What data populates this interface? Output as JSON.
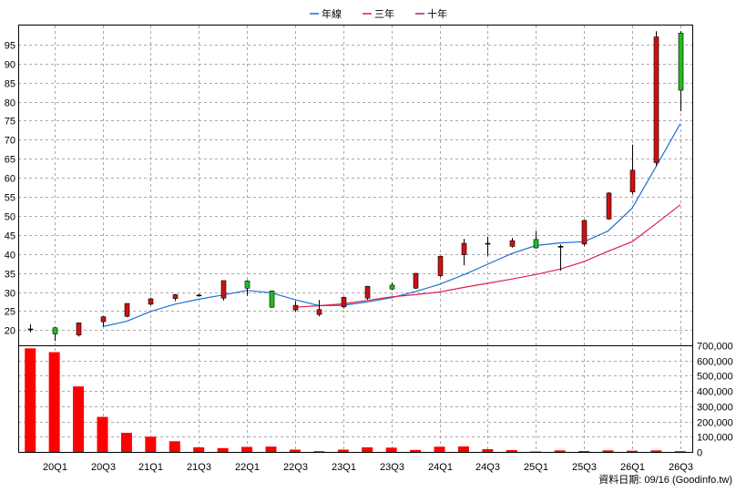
{
  "chart_data": {
    "type": "candlestick",
    "legend": {
      "placement": "top-center",
      "items": [
        {
          "name": "年線",
          "color": "#1f6fd6"
        },
        {
          "name": "三年",
          "color": "#e0204a"
        },
        {
          "name": "十年",
          "color": "#a0207a"
        }
      ]
    },
    "price_axis": {
      "ylim": [
        16,
        100
      ],
      "ticks": [
        20,
        25,
        30,
        35,
        40,
        45,
        50,
        55,
        60,
        65,
        70,
        75,
        80,
        85,
        90,
        95
      ]
    },
    "volume_axis": {
      "ylim": [
        0,
        700000
      ],
      "ticks": [
        "0",
        "100,000",
        "200,000",
        "300,000",
        "400,000",
        "500,000",
        "600,000",
        "700,000"
      ],
      "tick_values": [
        0,
        100000,
        200000,
        300000,
        400000,
        500000,
        600000,
        700000
      ]
    },
    "x_tick_labels": [
      {
        "i": 1,
        "label": "20Q1"
      },
      {
        "i": 3,
        "label": "20Q3"
      },
      {
        "i": 5,
        "label": "21Q1"
      },
      {
        "i": 7,
        "label": "21Q3"
      },
      {
        "i": 9,
        "label": "22Q1"
      },
      {
        "i": 11,
        "label": "22Q3"
      },
      {
        "i": 13,
        "label": "23Q1"
      },
      {
        "i": 15,
        "label": "23Q3"
      },
      {
        "i": 17,
        "label": "24Q1"
      },
      {
        "i": 19,
        "label": "24Q3"
      },
      {
        "i": 21,
        "label": "25Q1"
      },
      {
        "i": 23,
        "label": "25Q3"
      },
      {
        "i": 25,
        "label": "26Q1"
      },
      {
        "i": 27,
        "label": "26Q3"
      }
    ],
    "candles": [
      {
        "open": 20.3,
        "close": 20.3,
        "high": 21.5,
        "low": 19.4,
        "color": "black"
      },
      {
        "open": 19.0,
        "close": 20.6,
        "high": 20.8,
        "low": 17.1,
        "color": "green"
      },
      {
        "open": 18.7,
        "close": 21.9,
        "high": 21.9,
        "low": 18.3,
        "color": "red"
      },
      {
        "open": 22.2,
        "close": 23.5,
        "high": 23.7,
        "low": 21.0,
        "color": "red"
      },
      {
        "open": 23.6,
        "close": 27.0,
        "high": 27.0,
        "low": 23.4,
        "color": "red"
      },
      {
        "open": 26.8,
        "close": 28.2,
        "high": 28.5,
        "low": 26.5,
        "color": "red"
      },
      {
        "open": 28.3,
        "close": 29.3,
        "high": 29.5,
        "low": 27.6,
        "color": "red"
      },
      {
        "open": 29.2,
        "close": 29.2,
        "high": 29.5,
        "low": 28.8,
        "color": "black"
      },
      {
        "open": 28.4,
        "close": 33.0,
        "high": 33.0,
        "low": 27.8,
        "color": "red"
      },
      {
        "open": 32.9,
        "close": 31.0,
        "high": 33.1,
        "low": 29.0,
        "color": "green"
      },
      {
        "open": 30.3,
        "close": 26.0,
        "high": 30.4,
        "low": 25.8,
        "color": "green"
      },
      {
        "open": 25.3,
        "close": 26.5,
        "high": 27.6,
        "low": 24.8,
        "color": "red"
      },
      {
        "open": 24.1,
        "close": 25.4,
        "high": 27.9,
        "low": 23.6,
        "color": "red"
      },
      {
        "open": 26.1,
        "close": 28.6,
        "high": 28.8,
        "low": 25.7,
        "color": "red"
      },
      {
        "open": 28.4,
        "close": 31.5,
        "high": 31.6,
        "low": 28.0,
        "color": "red"
      },
      {
        "open": 30.8,
        "close": 31.8,
        "high": 32.5,
        "low": 30.5,
        "color": "green"
      },
      {
        "open": 31.0,
        "close": 34.9,
        "high": 35.0,
        "low": 30.8,
        "color": "red"
      },
      {
        "open": 34.3,
        "close": 39.4,
        "high": 39.5,
        "low": 33.9,
        "color": "red"
      },
      {
        "open": 39.8,
        "close": 42.8,
        "high": 44.0,
        "low": 37.0,
        "color": "red"
      },
      {
        "open": 42.8,
        "close": 42.8,
        "high": 44.5,
        "low": 39.5,
        "color": "black"
      },
      {
        "open": 42.0,
        "close": 43.5,
        "high": 44.2,
        "low": 41.7,
        "color": "red"
      },
      {
        "open": 43.8,
        "close": 41.6,
        "high": 46.0,
        "low": 41.4,
        "color": "green"
      },
      {
        "open": 42.0,
        "close": 42.0,
        "high": 42.5,
        "low": 35.6,
        "color": "black"
      },
      {
        "open": 42.6,
        "close": 48.8,
        "high": 49.0,
        "low": 42.1,
        "color": "red"
      },
      {
        "open": 49.2,
        "close": 56.0,
        "high": 56.2,
        "low": 49.0,
        "color": "red"
      },
      {
        "open": 56.3,
        "close": 62.0,
        "high": 68.7,
        "low": 55.6,
        "color": "red"
      },
      {
        "open": 64.0,
        "close": 97.0,
        "high": 98.5,
        "low": 63.2,
        "color": "red"
      },
      {
        "open": 98.0,
        "close": 83.0,
        "high": 98.5,
        "low": 77.5,
        "color": "green"
      }
    ],
    "series": [
      {
        "name": "年線",
        "color": "#1f6fd6",
        "points": [
          [
            3,
            20.9
          ],
          [
            4,
            22.3
          ],
          [
            5,
            24.9
          ],
          [
            6,
            26.8
          ],
          [
            7,
            28.1
          ],
          [
            8,
            29.2
          ],
          [
            9,
            30.4
          ],
          [
            10,
            29.8
          ],
          [
            11,
            28.0
          ],
          [
            12,
            26.4
          ],
          [
            13,
            26.5
          ],
          [
            14,
            27.4
          ],
          [
            15,
            28.5
          ],
          [
            16,
            30.1
          ],
          [
            17,
            32.0
          ],
          [
            18,
            34.5
          ],
          [
            19,
            37.3
          ],
          [
            20,
            40.1
          ],
          [
            21,
            42.2
          ],
          [
            22,
            42.9
          ],
          [
            23,
            43.2
          ],
          [
            24,
            46.0
          ],
          [
            25,
            52.0
          ],
          [
            26,
            63.0
          ],
          [
            27,
            74.2
          ]
        ]
      },
      {
        "name": "三年",
        "color": "#e0204a",
        "points": [
          [
            11,
            26.0
          ],
          [
            12,
            26.4
          ],
          [
            13,
            26.9
          ],
          [
            14,
            27.8
          ],
          [
            15,
            28.7
          ],
          [
            16,
            29.3
          ],
          [
            17,
            30.0
          ],
          [
            18,
            31.2
          ],
          [
            19,
            32.3
          ],
          [
            20,
            33.4
          ],
          [
            21,
            34.6
          ],
          [
            22,
            36.0
          ],
          [
            23,
            38.0
          ],
          [
            24,
            40.7
          ],
          [
            25,
            43.2
          ],
          [
            26,
            48.0
          ],
          [
            27,
            52.9
          ]
        ]
      }
    ],
    "volumes": [
      680000,
      655000,
      430000,
      230000,
      125000,
      100000,
      70000,
      30000,
      25000,
      33000,
      35000,
      15000,
      5000,
      15000,
      30000,
      28000,
      13000,
      34000,
      36000,
      18000,
      12000,
      3000,
      10000,
      6000,
      10000,
      8000,
      10000,
      5000
    ]
  },
  "footer": {
    "source_text": "資料日期: 09/16  (Goodinfo.tw)"
  }
}
